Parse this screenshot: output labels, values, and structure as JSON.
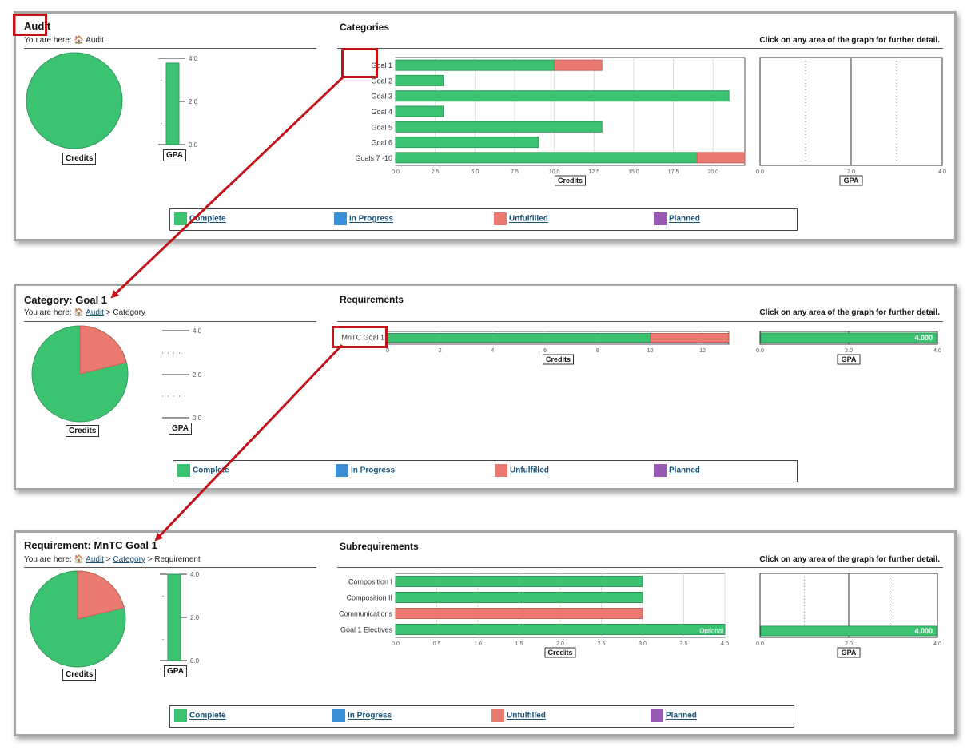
{
  "colors": {
    "complete": "#3cc372",
    "in_progress": "#3b8fd6",
    "unfulfilled": "#ea7970",
    "planned": "#9b59b6",
    "annotation": "#c0141a"
  },
  "labels": {
    "credits": "Credits",
    "gpa": "GPA",
    "hint": "Click on any area of the graph for further detail.",
    "you_are_here": "You are here:",
    "optional": "Optional",
    "gpa_value": "4.000"
  },
  "legend": [
    {
      "key": "complete",
      "label": "Complete"
    },
    {
      "key": "in_progress",
      "label": "In Progress"
    },
    {
      "key": "unfulfilled",
      "label": "Unfulfilled"
    },
    {
      "key": "planned",
      "label": "Planned"
    }
  ],
  "panels": [
    {
      "title": "Audit",
      "section_title": "Categories",
      "breadcrumb_links": [],
      "breadcrumb_current": "Audit"
    },
    {
      "title": "Category: Goal 1",
      "section_title": "Requirements",
      "breadcrumb_links": [
        "Audit"
      ],
      "breadcrumb_current": "Category"
    },
    {
      "title": "Requirement: MnTC Goal 1",
      "section_title": "Subrequirements",
      "breadcrumb_links": [
        "Audit",
        "Category"
      ],
      "breadcrumb_current": "Requirement"
    }
  ],
  "chart_data": [
    {
      "type": "pie",
      "panel": "Audit",
      "xlabel": "Credits",
      "slices": [
        {
          "status": "complete",
          "value": 1.0
        }
      ]
    },
    {
      "type": "bar",
      "panel": "Audit",
      "xlabel": "GPA",
      "ylim": [
        0,
        4
      ],
      "yticks": [
        "4.0",
        "2.0",
        "0.0"
      ],
      "value": 3.8
    },
    {
      "type": "bar",
      "panel": "Audit",
      "orientation": "horizontal",
      "xlabel": "Credits",
      "xlim": [
        0,
        22
      ],
      "xticks": [
        "0.0",
        "2.5",
        "5.0",
        "7.5",
        "10.0",
        "12.5",
        "15.0",
        "17.5",
        "20.0"
      ],
      "categories": [
        "Goal 1",
        "Goal 2",
        "Goal 3",
        "Goal 4",
        "Goal 5",
        "Goal 6",
        "Goals 7 -10"
      ],
      "series": [
        {
          "name": "Complete",
          "values": [
            10,
            3,
            21,
            3,
            13,
            9,
            19
          ]
        },
        {
          "name": "Unfulfilled",
          "values": [
            3,
            0,
            0,
            0,
            0,
            0,
            3
          ]
        }
      ]
    },
    {
      "type": "bar",
      "panel": "Audit",
      "orientation": "horizontal",
      "xlabel": "GPA",
      "xlim": [
        0,
        4
      ],
      "xticks": [
        "0.0",
        "2.0",
        "4.0"
      ],
      "values": []
    },
    {
      "type": "pie",
      "panel": "Category: Goal 1",
      "xlabel": "Credits",
      "slices": [
        {
          "status": "complete",
          "value": 0.77
        },
        {
          "status": "unfulfilled",
          "value": 0.23
        }
      ]
    },
    {
      "type": "bar",
      "panel": "Category: Goal 1",
      "xlabel": "GPA",
      "ylim": [
        0,
        4
      ],
      "yticks": [
        "4.0",
        "2.0",
        "0.0"
      ],
      "value": 0
    },
    {
      "type": "bar",
      "panel": "Category: Goal 1",
      "orientation": "horizontal",
      "xlabel": "Credits",
      "xlim": [
        0,
        13
      ],
      "xticks": [
        "0",
        "2",
        "4",
        "6",
        "8",
        "10",
        "12"
      ],
      "categories": [
        "MnTC Goal 1"
      ],
      "series": [
        {
          "name": "Complete",
          "values": [
            10
          ]
        },
        {
          "name": "Unfulfilled",
          "values": [
            3
          ]
        }
      ]
    },
    {
      "type": "bar",
      "panel": "Category: Goal 1",
      "orientation": "horizontal",
      "xlabel": "GPA",
      "xlim": [
        0,
        4
      ],
      "xticks": [
        "0.0",
        "2.0",
        "4.0"
      ],
      "values": [
        4.0
      ]
    },
    {
      "type": "pie",
      "panel": "Requirement: MnTC Goal 1",
      "xlabel": "Credits",
      "slices": [
        {
          "status": "complete",
          "value": 0.77
        },
        {
          "status": "unfulfilled",
          "value": 0.23
        }
      ]
    },
    {
      "type": "bar",
      "panel": "Requirement: MnTC Goal 1",
      "xlabel": "GPA",
      "ylim": [
        0,
        4
      ],
      "yticks": [
        "4.0",
        "2.0",
        "0.0"
      ],
      "value": 4.0
    },
    {
      "type": "bar",
      "panel": "Requirement: MnTC Goal 1",
      "orientation": "horizontal",
      "xlabel": "Credits",
      "xlim": [
        0,
        4
      ],
      "xticks": [
        "0.0",
        "0.5",
        "1.0",
        "1.5",
        "2.0",
        "2.5",
        "3.0",
        "3.5",
        "4.0"
      ],
      "categories": [
        "Composition I",
        "Composition II",
        "Communications",
        "Goal 1 Electives"
      ],
      "series": [
        {
          "name": "Complete",
          "values": [
            3,
            3,
            0,
            4
          ]
        },
        {
          "name": "Unfulfilled",
          "values": [
            0,
            0,
            3,
            0
          ]
        }
      ]
    },
    {
      "type": "bar",
      "panel": "Requirement: MnTC Goal 1",
      "orientation": "horizontal",
      "xlabel": "GPA",
      "xlim": [
        0,
        4
      ],
      "xticks": [
        "0.0",
        "2.0",
        "4.0"
      ],
      "values": [
        4.0
      ]
    }
  ]
}
